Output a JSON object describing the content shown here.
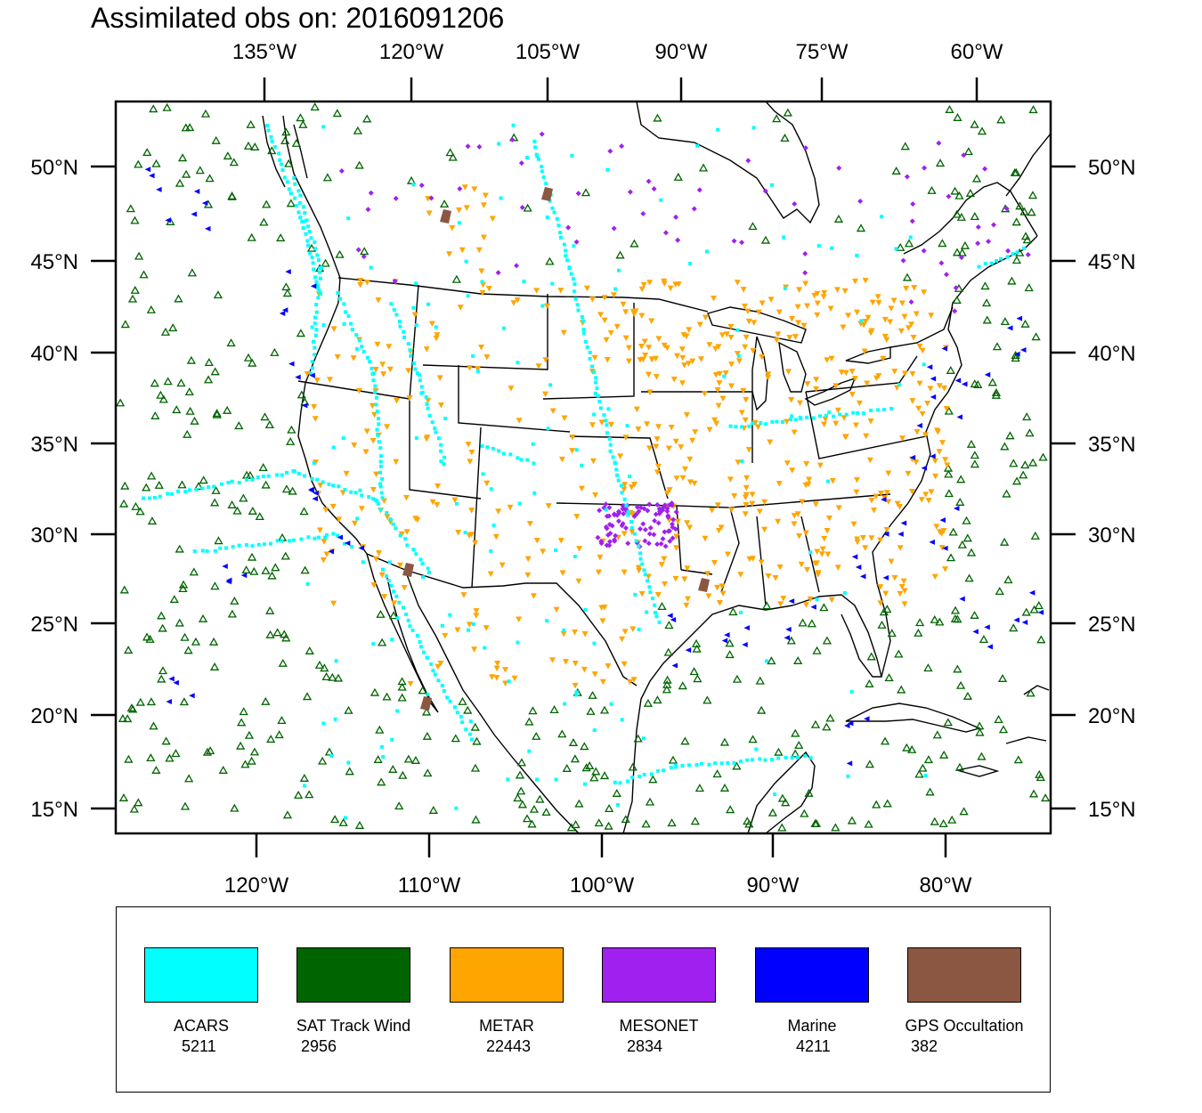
{
  "title": "Assimilated obs on: 2016091206",
  "map": {
    "top_lon_ticks": [
      "135°W",
      "120°W",
      "105°W",
      "90°W",
      "75°W",
      "60°W"
    ],
    "bottom_lon_ticks": [
      "120°W",
      "110°W",
      "100°W",
      "90°W",
      "80°W"
    ],
    "lat_ticks": [
      "50°N",
      "45°N",
      "40°N",
      "35°N",
      "30°N",
      "25°N",
      "20°N",
      "15°N"
    ],
    "bottom_lon_values": [
      -120,
      -110,
      -100,
      -90,
      -80
    ],
    "lat_values": [
      50,
      45,
      40,
      35,
      30,
      25,
      20,
      15
    ],
    "lon_range": [
      -127,
      -73
    ],
    "lat_range": [
      14,
      53
    ]
  },
  "legend": {
    "items": [
      {
        "label": "ACARS",
        "count": "5211",
        "color": "#00ffff",
        "icon": "square-marker"
      },
      {
        "label": "SAT Track Wind",
        "count": "2956",
        "color": "#006400",
        "icon": "triangle-up-marker"
      },
      {
        "label": "METAR",
        "count": "22443",
        "color": "#ffa500",
        "icon": "triangle-down-marker"
      },
      {
        "label": "MESONET",
        "count": "2834",
        "color": "#a020f0",
        "icon": "diamond-marker"
      },
      {
        "label": "Marine",
        "count": "4211",
        "color": "#0000ff",
        "icon": "triangle-left-marker"
      },
      {
        "label": "GPS Occultation",
        "count": "382",
        "color": "#8b5742",
        "icon": "parallelogram-marker"
      }
    ]
  }
}
